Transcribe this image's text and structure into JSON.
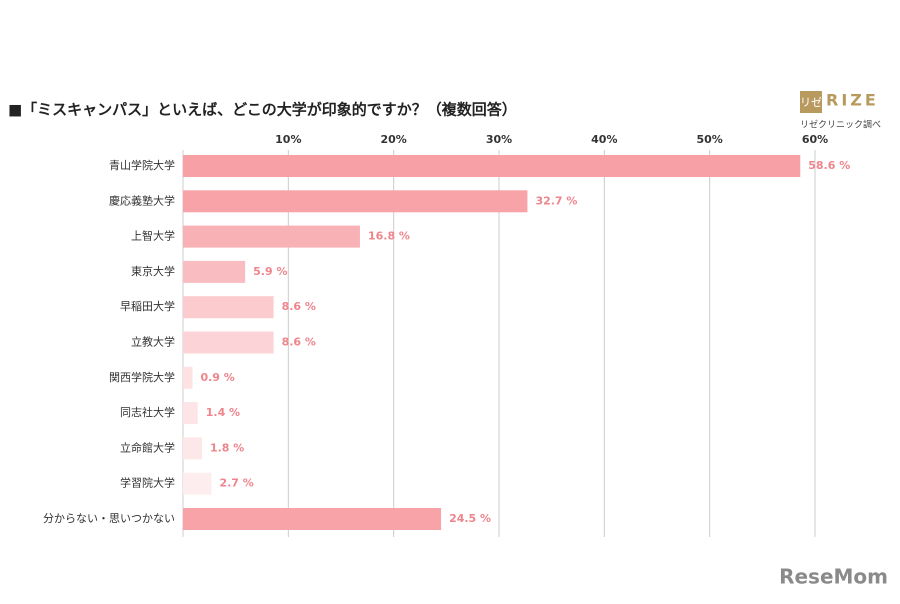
{
  "chart_data": {
    "type": "hbar",
    "title": "■「ミスキャンパス」といえば、どこの大学が印象的ですか？（複数回答）",
    "categories": [
      "青山学院大学",
      "慶応義塾大学",
      "上智大学",
      "東京大学",
      "早稲田大学",
      "立教大学",
      "関西学院大学",
      "同志社大学",
      "立命館大学",
      "学習院大学",
      "分からない・思いつかない"
    ],
    "values": [
      58.6,
      32.7,
      16.8,
      5.9,
      8.6,
      8.6,
      0.9,
      1.4,
      1.8,
      2.7,
      24.5
    ],
    "value_labels": [
      "58.6 %",
      "32.7 %",
      "16.8 %",
      "5.9 %",
      "8.6 %",
      "8.6 %",
      "0.9 %",
      "1.4 %",
      "1.8 %",
      "2.7 %",
      "24.5 %"
    ],
    "colors": [
      "#f7a0a5",
      "#f7a3a8",
      "#f8b1b5",
      "#f9bdc1",
      "#fbcbce",
      "#fcd3d6",
      "#fde1e3",
      "#fde4e6",
      "#fde7e8",
      "#feedee",
      "#f7a3a8"
    ],
    "label_color": "#ef858c",
    "xlim": [
      0,
      60
    ],
    "xticks": [
      {
        "value": 10,
        "label": "10%"
      },
      {
        "value": 20,
        "label": "20%"
      },
      {
        "value": 30,
        "label": "30%"
      },
      {
        "value": 40,
        "label": "40%"
      },
      {
        "value": 50,
        "label": "50%"
      },
      {
        "value": 60,
        "label": "60%"
      }
    ],
    "grid": true,
    "logo_mark": "リゼ",
    "logo": "RIZE",
    "source": "リゼクリニック調べ",
    "watermark": "ReseMom"
  }
}
